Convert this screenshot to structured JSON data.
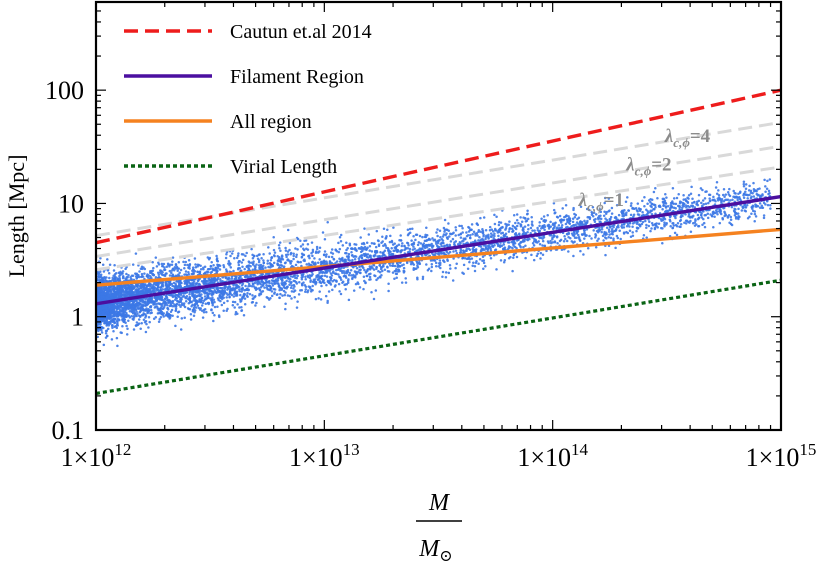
{
  "chart_data": {
    "type": "line",
    "xscale": "log",
    "yscale": "log",
    "xlim": [
      1000000000000.0,
      1000000000000000.0
    ],
    "ylim": [
      0.1,
      600
    ],
    "ylabel": "Length [Mpc]",
    "xlabel_num": "M",
    "xlabel_den": "M",
    "xlabel_den_sub": "⊙",
    "x_ticks": [
      {
        "value": 1000000000000.0,
        "mant": "1×10",
        "exp": "12"
      },
      {
        "value": 10000000000000.0,
        "mant": "1×10",
        "exp": "13"
      },
      {
        "value": 100000000000000.0,
        "mant": "1×10",
        "exp": "14"
      },
      {
        "value": 1000000000000000.0,
        "mant": "1×10",
        "exp": "15"
      }
    ],
    "y_ticks": [
      {
        "value": 0.1,
        "label": "0.1"
      },
      {
        "value": 1,
        "label": "1"
      },
      {
        "value": 10,
        "label": "10"
      },
      {
        "value": 100,
        "label": "100"
      }
    ],
    "series": [
      {
        "name": "Cautun et.al 2014",
        "style": "dashed",
        "color": "#ee1c1c",
        "x": [
          1000000000000.0,
          1000000000000000.0
        ],
        "y": [
          4.5,
          100
        ]
      },
      {
        "name": "Filament Region",
        "style": "solid",
        "color": "#4b0fa0",
        "x": [
          1000000000000.0,
          1000000000000000.0
        ],
        "y": [
          1.3,
          11.5
        ]
      },
      {
        "name": "All region",
        "style": "solid",
        "color": "#f58220",
        "x": [
          1000000000000.0,
          1000000000000000.0
        ],
        "y": [
          1.9,
          5.9
        ]
      },
      {
        "name": "Virial Length",
        "style": "dotted",
        "color": "#0a6414",
        "x": [
          1000000000000.0,
          1000000000000000.0
        ],
        "y": [
          0.21,
          2.1
        ]
      }
    ],
    "reference_lines": [
      {
        "label": "λ",
        "sub": "c,ϕ",
        "eq": "=4",
        "color": "#d9d9d9",
        "x": [
          1000000000000.0,
          1000000000000000.0
        ],
        "y": [
          5.2,
          52
        ],
        "label_at": [
          310000000000000.0,
          35
        ]
      },
      {
        "label": "λ",
        "sub": "c,ϕ",
        "eq": "=2",
        "color": "#d9d9d9",
        "x": [
          1000000000000.0,
          1000000000000000.0
        ],
        "y": [
          3.4,
          32
        ],
        "label_at": [
          210000000000000.0,
          19.5
        ]
      },
      {
        "label": "λ",
        "sub": "c,ϕ",
        "eq": "=1",
        "color": "#d9d9d9",
        "x": [
          1000000000000.0,
          1000000000000000.0
        ],
        "y": [
          2.6,
          21
        ],
        "label_at": [
          130000000000000.0,
          9.5
        ]
      }
    ],
    "scatter": {
      "name": "halos",
      "color": "#3c78e6",
      "fit_x": [
        1000000000000.0,
        1000000000000000.0
      ],
      "fit_y": [
        1.3,
        11.5
      ],
      "log_scatter": 0.12,
      "points_per_decade_falloff": "dense at low mass, sparse at high mass"
    },
    "legend": {
      "position": "top-left"
    }
  }
}
